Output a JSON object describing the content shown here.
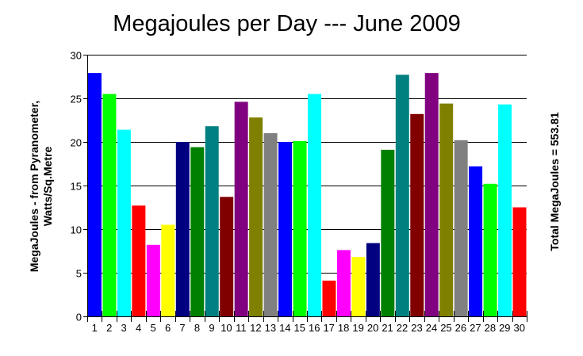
{
  "chart_data": {
    "type": "bar",
    "title": "Megajoules per Day --- June 2009",
    "ylabel_line1": "MegaJoules - from Pyranometer,",
    "ylabel_line2": "Watts/Sq.Metre",
    "right_label": "Total MegaJoules = 553.81",
    "xlabel": "",
    "ylim": [
      0,
      30
    ],
    "yticks": [
      0,
      5,
      10,
      15,
      20,
      25,
      30
    ],
    "grid": true,
    "categories": [
      "1",
      "2",
      "3",
      "4",
      "5",
      "6",
      "7",
      "8",
      "9",
      "10",
      "11",
      "12",
      "13",
      "14",
      "15",
      "16",
      "17",
      "18",
      "19",
      "20",
      "21",
      "22",
      "23",
      "24",
      "25",
      "26",
      "27",
      "28",
      "29",
      "30"
    ],
    "values": [
      27.9,
      25.5,
      21.4,
      12.7,
      8.2,
      10.5,
      20.0,
      19.4,
      21.8,
      13.7,
      24.6,
      22.8,
      21.0,
      20.0,
      20.1,
      25.5,
      4.1,
      7.6,
      6.8,
      8.4,
      19.1,
      27.7,
      23.2,
      27.9,
      24.4,
      20.2,
      17.2,
      15.2,
      24.3,
      12.5
    ],
    "colors": [
      "#0000ff",
      "#00ff00",
      "#00ffff",
      "#ff0000",
      "#ff00ff",
      "#ffff00",
      "#000080",
      "#008000",
      "#008080",
      "#800000",
      "#800080",
      "#808000",
      "#808080"
    ]
  }
}
